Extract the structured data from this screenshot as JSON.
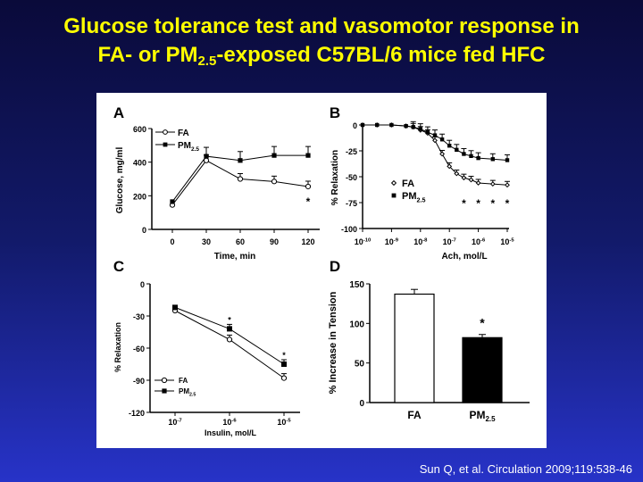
{
  "slide": {
    "title_line1": "Glucose tolerance test and vasomotor response in",
    "title_line2_pre": "FA- or PM",
    "title_line2_sub": "2.5",
    "title_line2_post": "-exposed C57BL/6 mice fed HFC",
    "citation": "Sun Q, et al. Circulation 2009;119:538-46"
  },
  "chart_data": [
    {
      "panel": "A",
      "type": "line",
      "xlabel": "Time, min",
      "ylabel": "Glucose, mg/ml",
      "x": [
        0,
        30,
        60,
        90,
        120
      ],
      "xticks": [
        "0",
        "30",
        "60",
        "90",
        "120"
      ],
      "ylim": [
        0,
        600
      ],
      "yticks": [
        "0",
        "200",
        "400",
        "600"
      ],
      "series": [
        {
          "name": "FA",
          "marker": "open-circle",
          "values": [
            145,
            410,
            300,
            285,
            255
          ]
        },
        {
          "name": "PM2.5",
          "marker": "filled-square",
          "values": [
            165,
            435,
            410,
            440,
            440
          ]
        }
      ],
      "significance": [
        {
          "x": 120,
          "label": "*"
        }
      ]
    },
    {
      "panel": "B",
      "type": "line",
      "xlabel": "Ach, mol/L",
      "ylabel": "% Relaxation",
      "x_log_exponents": [
        -10,
        -9.5,
        -9,
        -8.5,
        -8.25,
        -8,
        -7.75,
        -7.5,
        -7.25,
        -7,
        -6.75,
        -6.5,
        -6.25,
        -6,
        -5.5,
        -5
      ],
      "xticks": [
        "10-10",
        "10-9",
        "10-8",
        "10-7",
        "10-6",
        "10-5"
      ],
      "ylim": [
        -100,
        0
      ],
      "yticks": [
        "0",
        "-25",
        "-50",
        "-75",
        "-100"
      ],
      "series": [
        {
          "name": "FA",
          "marker": "open-diamond",
          "values": [
            0,
            0,
            0,
            -1,
            -2,
            -5,
            -8,
            -15,
            -28,
            -40,
            -47,
            -51,
            -53,
            -56,
            -57,
            -58
          ]
        },
        {
          "name": "PM2.5",
          "marker": "filled-square",
          "values": [
            0,
            0,
            0,
            -1,
            -2,
            -4,
            -7,
            -10,
            -14,
            -20,
            -24,
            -28,
            -30,
            -32,
            -33,
            -34
          ]
        }
      ],
      "significance": [
        {
          "x_log": -6.5,
          "label": "*"
        },
        {
          "x_log": -6,
          "label": "*"
        },
        {
          "x_log": -5.5,
          "label": "*"
        },
        {
          "x_log": -5,
          "label": "*"
        }
      ]
    },
    {
      "panel": "C",
      "type": "line",
      "xlabel": "Insulin, mol/L",
      "ylabel": "% Relaxation",
      "x_log_exponents": [
        -7,
        -6,
        -5
      ],
      "xticks": [
        "10-7",
        "10-6",
        "10-5"
      ],
      "ylim": [
        -120,
        0
      ],
      "yticks": [
        "0",
        "-30",
        "-60",
        "-90",
        "-120"
      ],
      "series": [
        {
          "name": "FA",
          "marker": "open-circle",
          "values": [
            -25,
            -52,
            -88
          ]
        },
        {
          "name": "PM2.5",
          "marker": "filled-square",
          "values": [
            -22,
            -42,
            -75
          ]
        }
      ],
      "significance": [
        {
          "x_log": -6,
          "label": "*"
        },
        {
          "x_log": -5,
          "label": "*"
        }
      ]
    },
    {
      "panel": "D",
      "type": "bar",
      "ylabel": "% Increase in Tension",
      "categories": [
        "FA",
        "PM2.5"
      ],
      "values": [
        137,
        82
      ],
      "errors": [
        6,
        4
      ],
      "fills": [
        "#ffffff",
        "#000000"
      ],
      "ylim": [
        0,
        150
      ],
      "yticks": [
        "0",
        "50",
        "100",
        "150"
      ],
      "significance": [
        {
          "category": "PM2.5",
          "label": "*"
        }
      ]
    }
  ]
}
